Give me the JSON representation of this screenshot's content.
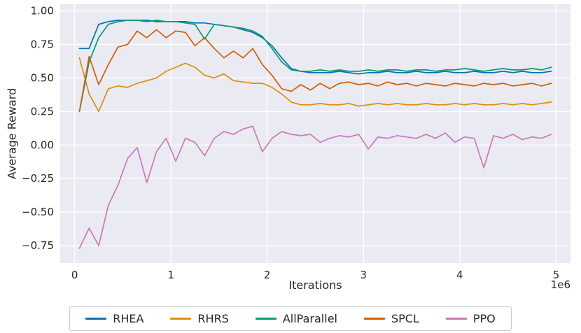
{
  "chart_data": {
    "type": "line",
    "title": "",
    "xlabel": "Iterations",
    "ylabel": "Average Reward",
    "grid": true,
    "legend_position": "bottom",
    "style": {
      "axes_bg": "#eaeaf2",
      "grid_color": "#ffffff",
      "text_color": "#262626",
      "legend_border": "#cccccc",
      "legend_bg": "#ffffff"
    },
    "x_axis": {
      "min": -0.15,
      "max": 5.15,
      "ticks": [
        0,
        1,
        2,
        3,
        4,
        5
      ],
      "tick_labels": [
        "0",
        "1",
        "2",
        "3",
        "4",
        "5"
      ],
      "offset_label": "1e6",
      "unit_scale": 1000000
    },
    "y_axis": {
      "min": -0.88,
      "max": 1.05,
      "ticks": [
        1.0,
        0.75,
        0.5,
        0.25,
        0.0,
        -0.25,
        -0.5,
        -0.75
      ],
      "tick_labels": [
        "1.00",
        "0.75",
        "0.50",
        "0.25",
        "0.00",
        "−0.25",
        "−0.50",
        "−0.75"
      ]
    },
    "x": [
      0.05,
      0.15,
      0.25,
      0.35,
      0.45,
      0.55,
      0.65,
      0.75,
      0.85,
      0.95,
      1.05,
      1.15,
      1.25,
      1.35,
      1.45,
      1.55,
      1.65,
      1.75,
      1.85,
      1.95,
      2.05,
      2.15,
      2.25,
      2.35,
      2.45,
      2.55,
      2.65,
      2.75,
      2.85,
      2.95,
      3.05,
      3.15,
      3.25,
      3.35,
      3.45,
      3.55,
      3.65,
      3.75,
      3.85,
      3.95,
      4.05,
      4.15,
      4.25,
      4.35,
      4.45,
      4.55,
      4.65,
      4.75,
      4.85,
      4.95
    ],
    "series": [
      {
        "name": "RHEA",
        "color": "#0173b2",
        "values": [
          0.72,
          0.72,
          0.9,
          0.92,
          0.93,
          0.93,
          0.93,
          0.93,
          0.92,
          0.92,
          0.92,
          0.92,
          0.91,
          0.91,
          0.9,
          0.89,
          0.88,
          0.86,
          0.84,
          0.8,
          0.74,
          0.65,
          0.57,
          0.55,
          0.54,
          0.54,
          0.54,
          0.55,
          0.54,
          0.53,
          0.54,
          0.54,
          0.55,
          0.54,
          0.54,
          0.55,
          0.54,
          0.54,
          0.55,
          0.54,
          0.54,
          0.55,
          0.54,
          0.54,
          0.55,
          0.54,
          0.55,
          0.54,
          0.54,
          0.55
        ]
      },
      {
        "name": "RHRS",
        "color": "#de8f05",
        "values": [
          0.65,
          0.38,
          0.25,
          0.42,
          0.44,
          0.43,
          0.46,
          0.48,
          0.5,
          0.55,
          0.58,
          0.61,
          0.58,
          0.52,
          0.5,
          0.53,
          0.48,
          0.47,
          0.46,
          0.46,
          0.43,
          0.38,
          0.32,
          0.3,
          0.3,
          0.31,
          0.3,
          0.3,
          0.31,
          0.29,
          0.3,
          0.31,
          0.3,
          0.31,
          0.3,
          0.3,
          0.31,
          0.3,
          0.3,
          0.31,
          0.3,
          0.31,
          0.3,
          0.3,
          0.31,
          0.3,
          0.31,
          0.3,
          0.31,
          0.32
        ]
      },
      {
        "name": "AllParallel",
        "color": "#029e73",
        "values": [
          0.25,
          0.62,
          0.8,
          0.9,
          0.92,
          0.93,
          0.93,
          0.92,
          0.93,
          0.92,
          0.92,
          0.91,
          0.9,
          0.79,
          0.9,
          0.89,
          0.88,
          0.87,
          0.85,
          0.81,
          0.72,
          0.62,
          0.56,
          0.55,
          0.55,
          0.56,
          0.55,
          0.56,
          0.55,
          0.55,
          0.56,
          0.55,
          0.56,
          0.56,
          0.55,
          0.56,
          0.56,
          0.55,
          0.56,
          0.56,
          0.57,
          0.56,
          0.55,
          0.56,
          0.57,
          0.56,
          0.56,
          0.57,
          0.56,
          0.58
        ]
      },
      {
        "name": "SPCL",
        "color": "#d55e00",
        "values": [
          0.25,
          0.66,
          0.45,
          0.6,
          0.73,
          0.75,
          0.85,
          0.8,
          0.86,
          0.8,
          0.85,
          0.84,
          0.74,
          0.8,
          0.72,
          0.65,
          0.7,
          0.65,
          0.72,
          0.6,
          0.52,
          0.42,
          0.4,
          0.45,
          0.41,
          0.46,
          0.42,
          0.46,
          0.47,
          0.45,
          0.46,
          0.44,
          0.47,
          0.45,
          0.46,
          0.44,
          0.46,
          0.45,
          0.44,
          0.46,
          0.45,
          0.44,
          0.46,
          0.45,
          0.46,
          0.44,
          0.45,
          0.46,
          0.44,
          0.46
        ]
      },
      {
        "name": "PPO",
        "color": "#cc78bc",
        "values": [
          -0.77,
          -0.62,
          -0.75,
          -0.45,
          -0.3,
          -0.1,
          -0.02,
          -0.28,
          -0.05,
          0.05,
          -0.12,
          0.05,
          0.02,
          -0.08,
          0.05,
          0.1,
          0.08,
          0.12,
          0.14,
          -0.05,
          0.05,
          0.1,
          0.08,
          0.07,
          0.08,
          0.02,
          0.05,
          0.07,
          0.06,
          0.08,
          -0.03,
          0.06,
          0.05,
          0.07,
          0.06,
          0.05,
          0.08,
          0.05,
          0.09,
          0.02,
          0.06,
          0.05,
          -0.17,
          0.07,
          0.05,
          0.08,
          0.04,
          0.06,
          0.05,
          0.08
        ]
      }
    ]
  }
}
